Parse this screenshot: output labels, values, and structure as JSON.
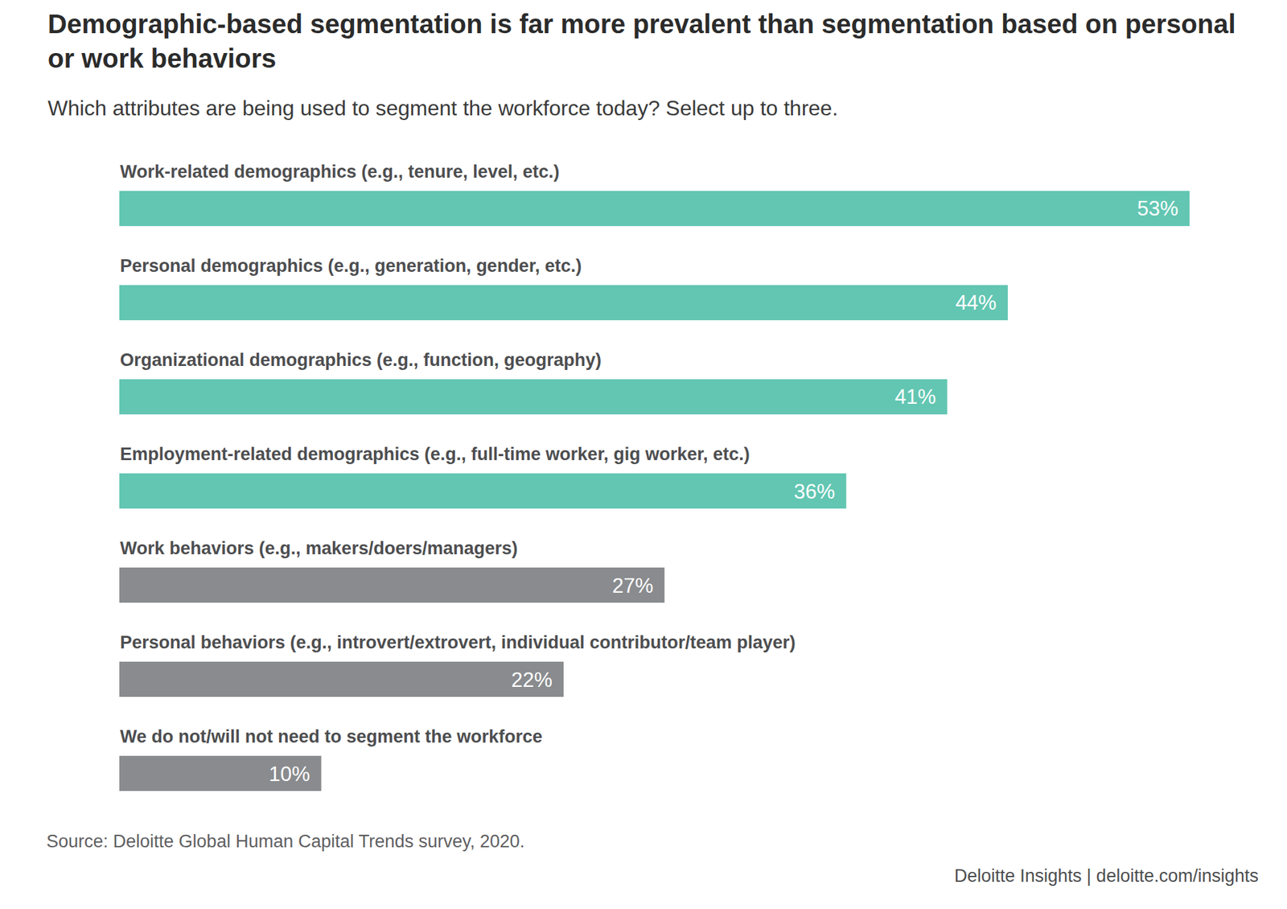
{
  "chart_data": {
    "type": "bar",
    "orientation": "horizontal",
    "title": "Demographic-based segmentation is far more prevalent than segmentation based on personal or work behaviors",
    "subtitle": "Which attributes are being used to segment the workforce today? Select up to three.",
    "categories": [
      "Work-related demographics (e.g., tenure, level, etc.)",
      "Personal demographics (e.g., generation, gender, etc.)",
      "Organizational demographics (e.g., function, geography)",
      "Employment-related demographics (e.g., full-time worker, gig worker, etc.)",
      "Work behaviors (e.g., makers/doers/managers)",
      "Personal behaviors (e.g., introvert/extrovert, individual contributor/team player)",
      "We do not/will not need to segment the workforce"
    ],
    "values": [
      53,
      44,
      41,
      36,
      27,
      22,
      10
    ],
    "value_labels": [
      "53%",
      "44%",
      "41%",
      "36%",
      "27%",
      "22%",
      "10%"
    ],
    "colors": [
      "#62c6b2",
      "#62c6b2",
      "#62c6b2",
      "#62c6b2",
      "#898b8e",
      "#898b8e",
      "#898b8e"
    ],
    "xlim": [
      0,
      53
    ],
    "data_labels": true,
    "tick_labels": false,
    "grid": false,
    "source": "Source: Deloitte Global Human Capital Trends survey, 2020.",
    "credit": "Deloitte Insights | deloitte.com/insights"
  }
}
